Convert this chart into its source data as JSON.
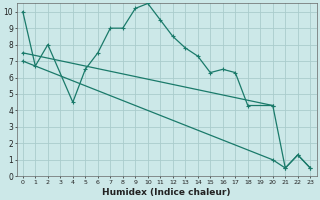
{
  "background_color": "#cce8e8",
  "grid_color": "#aacccc",
  "line_color": "#1a7a6a",
  "xlabel": "Humidex (Indice chaleur)",
  "xlim": [
    -0.5,
    23.5
  ],
  "ylim": [
    0,
    10.5
  ],
  "line1_x": [
    0,
    1,
    2,
    4,
    5,
    6,
    7,
    8,
    9,
    10,
    11,
    12,
    13,
    14,
    15,
    16,
    17,
    18,
    20
  ],
  "line1_y": [
    10,
    6.7,
    8.0,
    4.5,
    6.5,
    7.5,
    9.0,
    9.0,
    10.2,
    10.5,
    9.5,
    8.5,
    7.8,
    7.3,
    6.3,
    6.5,
    6.3,
    4.3,
    4.3
  ],
  "line2_x": [
    0,
    20,
    21,
    22,
    23
  ],
  "line2_y": [
    7.5,
    4.3,
    0.5,
    1.3,
    0.5
  ],
  "line3_x": [
    0,
    20,
    21,
    22,
    23
  ],
  "line3_y": [
    7.0,
    1.0,
    0.5,
    1.3,
    0.5
  ],
  "figsize": [
    3.2,
    2.0
  ],
  "dpi": 100
}
